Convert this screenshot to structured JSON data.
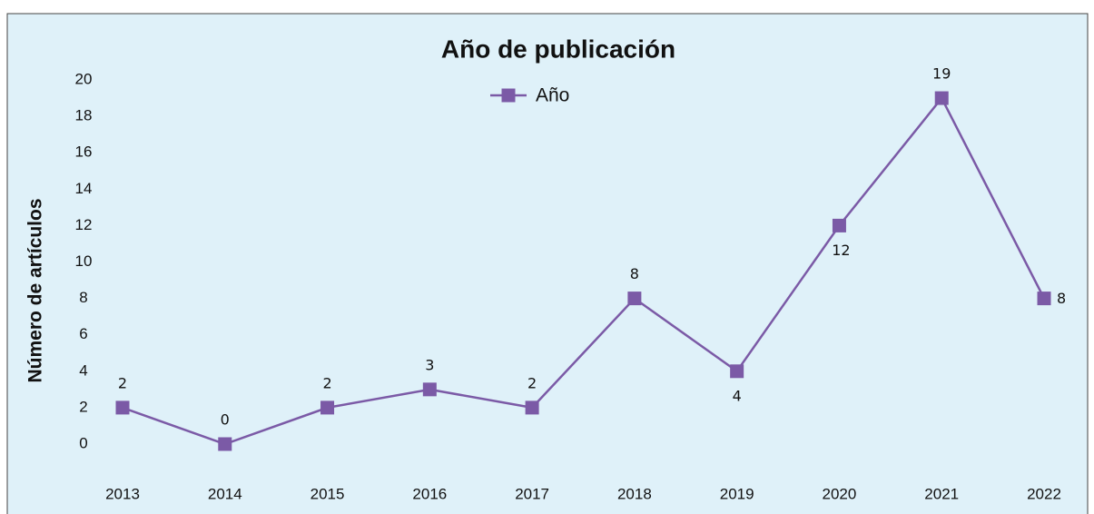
{
  "chart_data": {
    "type": "line",
    "title": "Año de publicación",
    "y_label": "Número de artículos",
    "categories": [
      "2013",
      "2014",
      "2015",
      "2016",
      "2017",
      "2018",
      "2019",
      "2020",
      "2021",
      "2022"
    ],
    "series": [
      {
        "name": "Año",
        "color": "#7b5aa6",
        "values": [
          2,
          0,
          2,
          3,
          2,
          8,
          4,
          12,
          19,
          8
        ]
      }
    ],
    "ylim": [
      0,
      20
    ],
    "yticks": [
      0,
      2,
      4,
      6,
      8,
      10,
      12,
      14,
      16,
      18,
      20
    ],
    "grid": false,
    "legend": "top"
  }
}
